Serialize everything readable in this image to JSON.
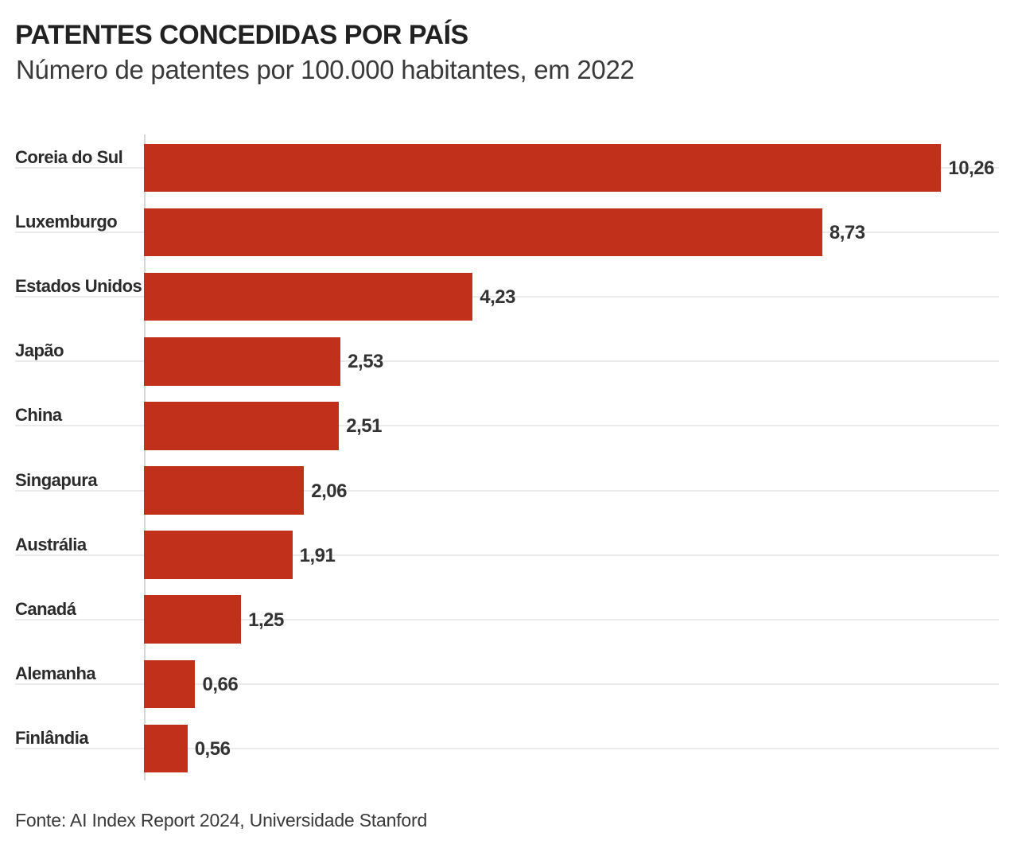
{
  "header": {
    "title": "PATENTES CONCEDIDAS POR PAÍS",
    "subtitle": "Número de patentes por 100.000 habitantes, em 2022"
  },
  "footer": {
    "source": "Fonte: AI Index Report 2024, Universidade Stanford"
  },
  "colors": {
    "bar": "#c1301b",
    "gridline": "#ebebeb",
    "axis": "#d6d6d6",
    "title_text": "#212121",
    "body_text": "#333333"
  },
  "chart_data": {
    "type": "bar",
    "orientation": "horizontal",
    "title": "PATENTES CONCEDIDAS POR PAÍS",
    "subtitle": "Número de patentes por 100.000 habitantes, em 2022",
    "source": "Fonte: AI Index Report 2024, Universidade Stanford",
    "categories": [
      "Coreia do Sul",
      "Luxemburgo",
      "Estados Unidos",
      "Japão",
      "China",
      "Singapura",
      "Austrália",
      "Canadá",
      "Alemanha",
      "Finlândia"
    ],
    "values": [
      10.26,
      8.73,
      4.23,
      2.53,
      2.51,
      2.06,
      1.91,
      1.25,
      0.66,
      0.56
    ],
    "value_labels": [
      "10,26",
      "8,73",
      "4,23",
      "2,53",
      "2,51",
      "2,06",
      "1,91",
      "1,25",
      "0,66",
      "0,56"
    ],
    "xlim": [
      0,
      10.26
    ],
    "grid": true,
    "legend": false,
    "value_label_position": "end-of-bar",
    "decimal_separator": ","
  }
}
